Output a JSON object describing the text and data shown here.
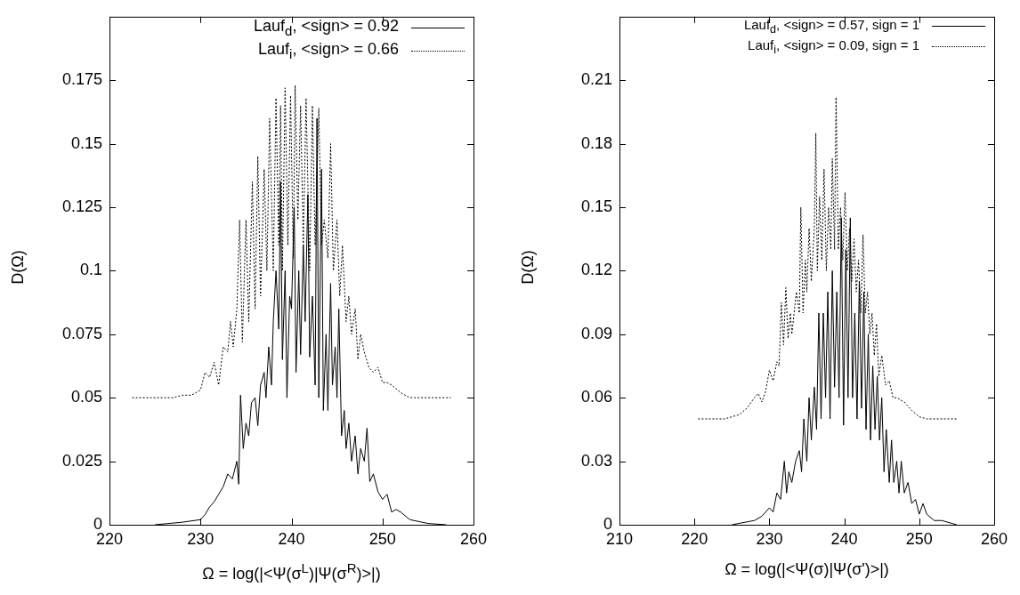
{
  "chart_data": [
    {
      "type": "line",
      "xlabel": "Ω = log(|<Ψ(σ$^{L}$)|Ψ(σ$^{R}$)>|)",
      "ylabel": "D(Ω)",
      "xlim": [
        220,
        260
      ],
      "xticks": [
        220,
        230,
        240,
        250,
        260
      ],
      "ylim": [
        0,
        0.2
      ],
      "yticks": [
        0,
        0.025,
        0.05,
        0.075,
        0.1,
        0.125,
        0.15,
        0.175
      ],
      "grid": false,
      "legend": "top right",
      "series": [
        {
          "name": "Lauf$_{d}$, <sign> = 0.92",
          "color": "#000000",
          "line_style": "solid",
          "x": [
            225,
            228,
            230,
            230.5,
            231,
            231.5,
            232,
            232.5,
            233,
            233.5,
            234,
            234.2,
            234.4,
            234.7,
            235,
            235.3,
            235.6,
            236,
            236.3,
            236.6,
            237,
            237.2,
            237.5,
            237.8,
            238,
            238.3,
            238.6,
            238.8,
            239,
            239.3,
            239.5,
            239.8,
            240,
            240.3,
            240.5,
            240.8,
            241,
            241.3,
            241.5,
            241.8,
            242,
            242.3,
            242.6,
            242.8,
            243,
            243.3,
            243.5,
            243.8,
            244,
            244.3,
            244.5,
            244.8,
            245,
            245.2,
            245.5,
            245.8,
            246,
            246.3,
            246.6,
            247,
            247.3,
            247.6,
            248,
            248.3,
            248.6,
            249,
            249.5,
            250,
            250.5,
            251,
            251.5,
            252,
            253,
            255,
            257
          ],
          "values": [
            0,
            0.001,
            0.002,
            0.004,
            0.007,
            0.009,
            0.012,
            0.015,
            0.02,
            0.018,
            0.025,
            0.016,
            0.051,
            0.03,
            0.04,
            0.035,
            0.048,
            0.05,
            0.039,
            0.055,
            0.06,
            0.05,
            0.07,
            0.055,
            0.08,
            0.1,
            0.077,
            0.135,
            0.065,
            0.1,
            0.05,
            0.09,
            0.085,
            0.125,
            0.06,
            0.1,
            0.067,
            0.11,
            0.08,
            0.13,
            0.066,
            0.09,
            0.055,
            0.16,
            0.05,
            0.14,
            0.045,
            0.075,
            0.045,
            0.095,
            0.055,
            0.07,
            0.05,
            0.085,
            0.035,
            0.045,
            0.03,
            0.04,
            0.025,
            0.035,
            0.02,
            0.03,
            0.025,
            0.038,
            0.017,
            0.02,
            0.013,
            0.01,
            0.012,
            0.005,
            0.006,
            0.005,
            0.002,
            0.0005,
            0
          ]
        },
        {
          "name": "Lauf$_{i}$, <sign> = 0.66",
          "color": "#000000",
          "line_style": "dotted",
          "x": [
            222.5,
            227,
            228,
            229,
            230,
            230.5,
            231,
            231.5,
            232,
            232.5,
            233,
            233.3,
            233.6,
            234,
            234.3,
            234.6,
            235,
            235.3,
            235.7,
            236,
            236.3,
            236.6,
            237,
            237.3,
            237.6,
            238,
            238.3,
            238.6,
            238.8,
            239,
            239.3,
            239.6,
            239.9,
            240.2,
            240.4,
            240.7,
            241,
            241.3,
            241.6,
            242,
            242.3,
            242.6,
            243,
            243.3,
            243.6,
            244,
            244.3,
            244.6,
            245,
            245.3,
            245.6,
            246,
            246.3,
            246.6,
            247,
            247.3,
            247.6,
            248,
            248.5,
            249,
            249.5,
            250,
            250.5,
            251,
            252,
            253,
            257.5
          ],
          "values": [
            0.05,
            0.05,
            0.051,
            0.051,
            0.053,
            0.06,
            0.058,
            0.064,
            0.055,
            0.07,
            0.068,
            0.08,
            0.07,
            0.085,
            0.12,
            0.072,
            0.12,
            0.08,
            0.135,
            0.085,
            0.145,
            0.09,
            0.14,
            0.1,
            0.16,
            0.1,
            0.168,
            0.11,
            0.165,
            0.1,
            0.172,
            0.11,
            0.169,
            0.105,
            0.173,
            0.12,
            0.165,
            0.11,
            0.168,
            0.1,
            0.165,
            0.11,
            0.164,
            0.11,
            0.12,
            0.105,
            0.15,
            0.1,
            0.12,
            0.09,
            0.11,
            0.08,
            0.09,
            0.075,
            0.085,
            0.065,
            0.075,
            0.068,
            0.062,
            0.06,
            0.062,
            0.056,
            0.056,
            0.055,
            0.052,
            0.05,
            0.05
          ]
        }
      ]
    },
    {
      "type": "line",
      "xlabel": "Ω = log(|<Ψ(σ)|Ψ(σ')>|)",
      "ylabel": "D(Ω)",
      "xlim": [
        210,
        260
      ],
      "xticks": [
        210,
        220,
        230,
        240,
        250,
        260
      ],
      "ylim": [
        0,
        0.24
      ],
      "yticks": [
        0,
        0.03,
        0.06,
        0.09,
        0.12,
        0.15,
        0.18,
        0.21
      ],
      "grid": false,
      "legend": "top right",
      "series": [
        {
          "name": "Lauf$_{d}$, <sign> = 0.57, sign = 1",
          "color": "#000000",
          "line_style": "solid",
          "x": [
            225,
            228,
            229,
            230,
            230.5,
            231,
            231.5,
            232,
            232.3,
            232.6,
            233,
            233.5,
            234,
            234.3,
            234.6,
            235,
            235.3,
            235.6,
            236,
            236.3,
            236.6,
            236.9,
            237.2,
            237.5,
            237.8,
            238.1,
            238.4,
            238.7,
            239,
            239.3,
            239.6,
            239.9,
            240.2,
            240.5,
            240.8,
            241.1,
            241.4,
            241.7,
            242,
            242.3,
            242.6,
            242.9,
            243.2,
            243.5,
            243.8,
            244.1,
            244.4,
            244.7,
            245,
            245.3,
            245.6,
            246,
            246.3,
            246.6,
            247,
            247.3,
            247.6,
            248,
            248.5,
            249,
            249.5,
            250,
            250.5,
            251,
            252,
            253,
            255
          ],
          "values": [
            0,
            0.002,
            0.004,
            0.008,
            0.006,
            0.015,
            0.012,
            0.03,
            0.015,
            0.025,
            0.02,
            0.03,
            0.035,
            0.025,
            0.05,
            0.03,
            0.06,
            0.04,
            0.065,
            0.045,
            0.1,
            0.05,
            0.1,
            0.06,
            0.11,
            0.05,
            0.12,
            0.065,
            0.11,
            0.06,
            0.145,
            0.047,
            0.13,
            0.06,
            0.145,
            0.06,
            0.1,
            0.05,
            0.115,
            0.055,
            0.11,
            0.045,
            0.09,
            0.04,
            0.075,
            0.045,
            0.07,
            0.04,
            0.06,
            0.025,
            0.045,
            0.02,
            0.04,
            0.02,
            0.03,
            0.015,
            0.03,
            0.015,
            0.02,
            0.01,
            0.012,
            0.005,
            0.01,
            0.005,
            0.002,
            0.002,
            0
          ]
        },
        {
          "name": "Lauf$_{i}$, <sign> = 0.09, sign = 1",
          "color": "#000000",
          "line_style": "dotted",
          "x": [
            220.5,
            224,
            226,
            227,
            228,
            228.5,
            229,
            229.5,
            230,
            230.5,
            231,
            231.3,
            231.6,
            231.9,
            232.2,
            232.5,
            232.8,
            233,
            233.3,
            233.6,
            234,
            234.2,
            234.5,
            234.8,
            235,
            235.3,
            235.6,
            236,
            236.2,
            236.4,
            236.7,
            237,
            237.3,
            237.6,
            237.9,
            238.2,
            238.4,
            238.7,
            238.9,
            239.2,
            239.5,
            239.8,
            240.1,
            240.4,
            240.7,
            241,
            241.3,
            241.6,
            241.9,
            242.2,
            242.5,
            242.8,
            243.1,
            243.4,
            243.7,
            244,
            244.3,
            244.6,
            245,
            245.5,
            246,
            246.5,
            247,
            248,
            249,
            250,
            251,
            255
          ],
          "values": [
            0.05,
            0.05,
            0.052,
            0.055,
            0.06,
            0.062,
            0.058,
            0.063,
            0.073,
            0.068,
            0.077,
            0.075,
            0.105,
            0.085,
            0.112,
            0.088,
            0.1,
            0.09,
            0.1,
            0.11,
            0.1,
            0.15,
            0.1,
            0.125,
            0.11,
            0.14,
            0.115,
            0.14,
            0.185,
            0.12,
            0.155,
            0.125,
            0.168,
            0.12,
            0.15,
            0.13,
            0.173,
            0.13,
            0.202,
            0.13,
            0.15,
            0.125,
            0.157,
            0.12,
            0.14,
            0.115,
            0.135,
            0.11,
            0.125,
            0.1,
            0.137,
            0.1,
            0.11,
            0.09,
            0.1,
            0.08,
            0.095,
            0.07,
            0.08,
            0.066,
            0.068,
            0.06,
            0.06,
            0.058,
            0.054,
            0.051,
            0.05,
            0.05
          ]
        }
      ]
    }
  ]
}
